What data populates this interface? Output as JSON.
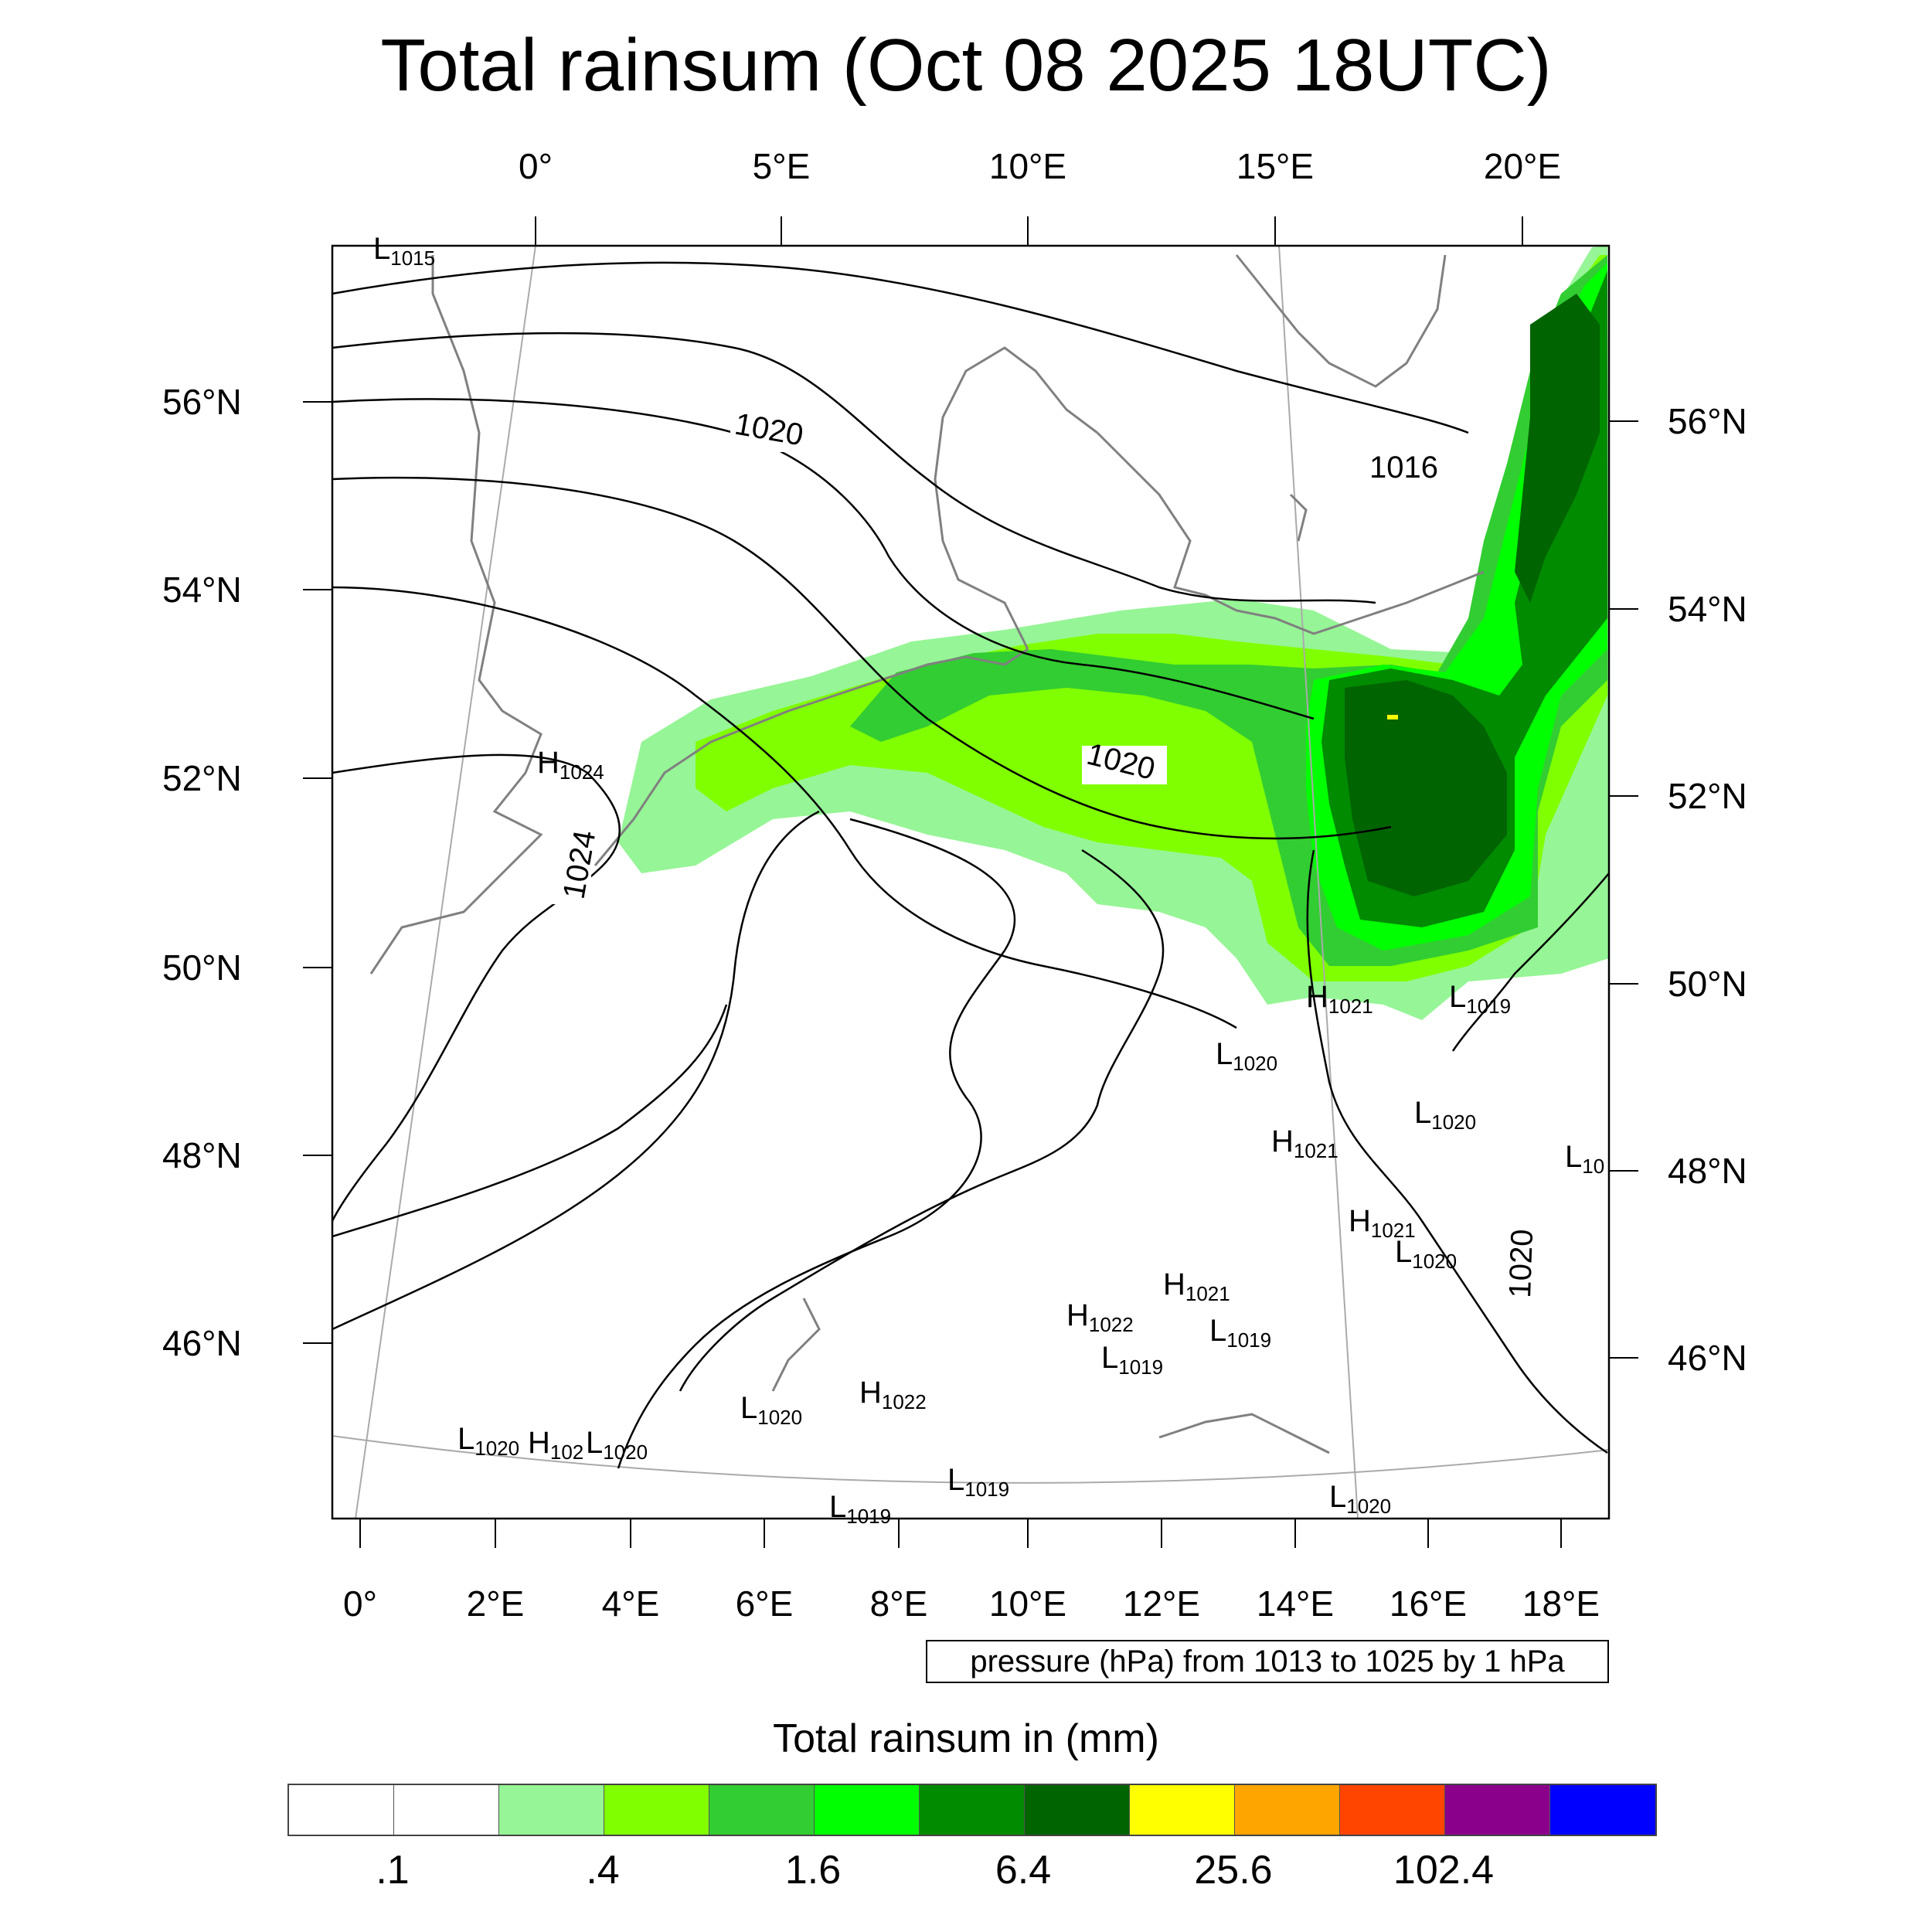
{
  "title": "Total rainsum (Oct 08 2025 18UTC)",
  "top_lon_labels": [
    "0°",
    "5°E",
    "10°E",
    "15°E",
    "20°E"
  ],
  "bottom_lon_labels": [
    "0°",
    "2°E",
    "4°E",
    "6°E",
    "8°E",
    "10°E",
    "12°E",
    "14°E",
    "16°E",
    "18°E"
  ],
  "left_lat_labels": [
    "56°N",
    "54°N",
    "52°N",
    "50°N",
    "48°N",
    "46°N"
  ],
  "right_lat_labels": [
    "56°N",
    "54°N",
    "52°N",
    "50°N",
    "48°N",
    "46°N"
  ],
  "pressure_note": "pressure (hPa) from 1013 to 1025 by 1 hPa",
  "colorbar_title": "Total rainsum in (mm)",
  "colorbar_labels": [
    ".1",
    ".4",
    "1.6",
    "6.4",
    "25.6",
    "102.4"
  ],
  "colorbar_colors": [
    "#ffffff",
    "#ffffff",
    "#96f596",
    "#80ff00",
    "#32cd32",
    "#00ff00",
    "#008b00",
    "#006400",
    "#ffff00",
    "#ffa500",
    "#ff4500",
    "#8b008b",
    "#0000ff"
  ],
  "isobar_labels": [
    "1020",
    "1016",
    "1020",
    "1024",
    "1020"
  ],
  "pressure_centers": [
    {
      "type": "L",
      "value": "1015"
    },
    {
      "type": "H",
      "value": "1024"
    },
    {
      "type": "H",
      "value": "1021"
    },
    {
      "type": "L",
      "value": "1019"
    },
    {
      "type": "L",
      "value": "1020"
    },
    {
      "type": "L",
      "value": "1020"
    },
    {
      "type": "H",
      "value": "1021"
    },
    {
      "type": "L",
      "value": "10"
    },
    {
      "type": "H",
      "value": "1021"
    },
    {
      "type": "L",
      "value": "1020"
    },
    {
      "type": "H",
      "value": "1021"
    },
    {
      "type": "H",
      "value": "1022"
    },
    {
      "type": "L",
      "value": "1019"
    },
    {
      "type": "L",
      "value": "1019"
    },
    {
      "type": "L",
      "value": "1020"
    },
    {
      "type": "H",
      "value": "1022"
    },
    {
      "type": "L",
      "value": "1020"
    },
    {
      "type": "H",
      "value": "102"
    },
    {
      "type": "L",
      "value": "1020"
    },
    {
      "type": "L",
      "value": "1019"
    },
    {
      "type": "L",
      "value": "1019"
    },
    {
      "type": "L",
      "value": "1020"
    }
  ]
}
